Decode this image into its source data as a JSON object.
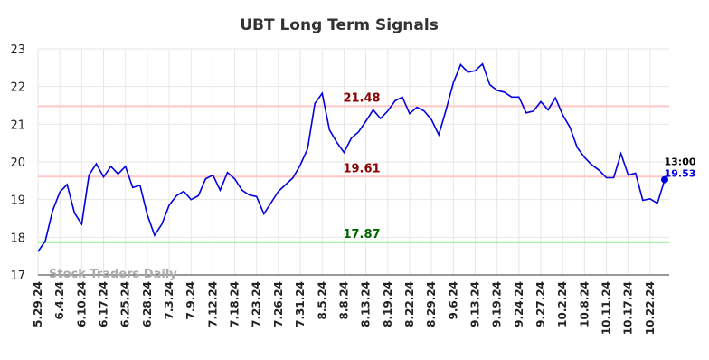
{
  "chart_data": {
    "type": "line",
    "title": "UBT Long Term Signals",
    "categories": [
      "5.29.24",
      null,
      null,
      "6.4.24",
      null,
      null,
      "6.10.24",
      null,
      null,
      "6.17.24",
      null,
      null,
      "6.25.24",
      null,
      null,
      "6.28.24",
      null,
      null,
      "7.3.24",
      null,
      null,
      "7.9.24",
      null,
      null,
      "7.12.24",
      null,
      null,
      "7.18.24",
      null,
      null,
      "7.23.24",
      null,
      null,
      "7.26.24",
      null,
      null,
      "7.31.24",
      null,
      null,
      "8.5.24",
      null,
      null,
      "8.8.24",
      null,
      null,
      "8.13.24",
      null,
      null,
      "8.19.24",
      null,
      null,
      "8.22.24",
      null,
      null,
      "8.29.24",
      null,
      null,
      "9.6.24",
      null,
      null,
      "9.13.24",
      null,
      null,
      "9.19.24",
      null,
      null,
      "9.24.24",
      null,
      null,
      "9.27.24",
      null,
      null,
      "10.2.24",
      null,
      null,
      "10.8.24",
      null,
      null,
      "10.11.24",
      null,
      null,
      "10.17.24",
      null,
      null,
      "10.22.24",
      null,
      null
    ],
    "series": [
      {
        "name": "UBT",
        "color": "#0000e0",
        "values": [
          17.62,
          17.9,
          18.7,
          19.2,
          19.4,
          18.65,
          18.35,
          19.65,
          19.95,
          19.6,
          19.88,
          19.68,
          19.88,
          19.32,
          19.38,
          18.6,
          18.05,
          18.35,
          18.85,
          19.1,
          19.22,
          19.0,
          19.1,
          19.55,
          19.65,
          19.25,
          19.72,
          19.55,
          19.25,
          19.12,
          19.08,
          18.62,
          18.92,
          19.22,
          19.4,
          19.58,
          19.92,
          20.35,
          21.55,
          21.82,
          20.85,
          20.52,
          20.25,
          20.63,
          20.8,
          21.08,
          21.38,
          21.15,
          21.35,
          21.62,
          21.72,
          21.28,
          21.45,
          21.35,
          21.12,
          20.72,
          21.38,
          22.1,
          22.58,
          22.38,
          22.42,
          22.6,
          22.05,
          21.9,
          21.85,
          21.72,
          21.72,
          21.3,
          21.35,
          21.6,
          21.38,
          21.7,
          21.25,
          20.92,
          20.38,
          20.12,
          19.92,
          19.78,
          19.58,
          19.58,
          20.22,
          19.65,
          19.7,
          18.98,
          19.02,
          18.9,
          19.53
        ]
      }
    ],
    "ylim": [
      17,
      23
    ],
    "yticks": [
      17,
      18,
      19,
      20,
      21,
      22,
      23
    ],
    "grid": true,
    "reference_lines": [
      {
        "value": 21.48,
        "color": "#ffc8c8",
        "text_color": "#8b0000"
      },
      {
        "value": 19.61,
        "color": "#ffc8c8",
        "text_color": "#8b0000"
      },
      {
        "value": 17.87,
        "color": "#90ee90",
        "text_color": "#006400"
      }
    ],
    "last_time": "13:00",
    "watermark": "Stock Traders Daily"
  }
}
